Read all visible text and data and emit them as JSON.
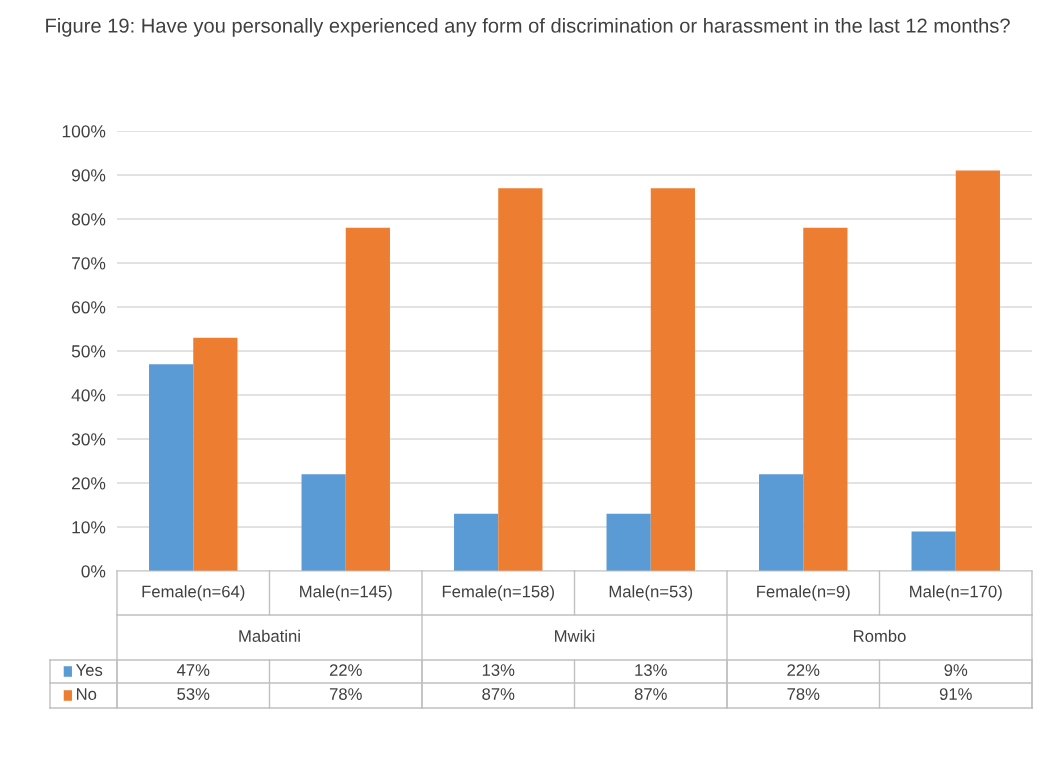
{
  "chart_data": {
    "type": "bar",
    "title": "Figure 19: Have you personally experienced any form of discrimination or harassment in the last 12 months?",
    "categories": [
      "Female(n=64)",
      "Male(n=145)",
      "Female(n=158)",
      "Male(n=53)",
      "Female(n=9)",
      "Male(n=170)"
    ],
    "annotations": [
      "Mabatini",
      "Mwiki",
      "Rombo"
    ],
    "series": [
      {
        "name": "Yes",
        "color": "#5b9bd5",
        "values": [
          47,
          22,
          13,
          13,
          22,
          9
        ],
        "value_labels": [
          "47%",
          "22%",
          "13%",
          "13%",
          "22%",
          "9%"
        ]
      },
      {
        "name": "No",
        "color": "#ed7d31",
        "values": [
          53,
          78,
          87,
          87,
          78,
          91
        ],
        "value_labels": [
          "53%",
          "78%",
          "87%",
          "87%",
          "78%",
          "91%"
        ]
      }
    ],
    "ylim": [
      0,
      100
    ],
    "yticks": [
      {
        "value": 0,
        "label": "0%"
      },
      {
        "value": 10,
        "label": "10%"
      },
      {
        "value": 20,
        "label": "20%"
      },
      {
        "value": 30,
        "label": "30%"
      },
      {
        "value": 40,
        "label": "40%"
      },
      {
        "value": 50,
        "label": "50%"
      },
      {
        "value": 60,
        "label": "60%"
      },
      {
        "value": 70,
        "label": "70%"
      },
      {
        "value": 80,
        "label": "80%"
      },
      {
        "value": 90,
        "label": "90%"
      },
      {
        "value": 100,
        "label": "100%"
      }
    ],
    "grid": "y",
    "legend": "bottom"
  }
}
